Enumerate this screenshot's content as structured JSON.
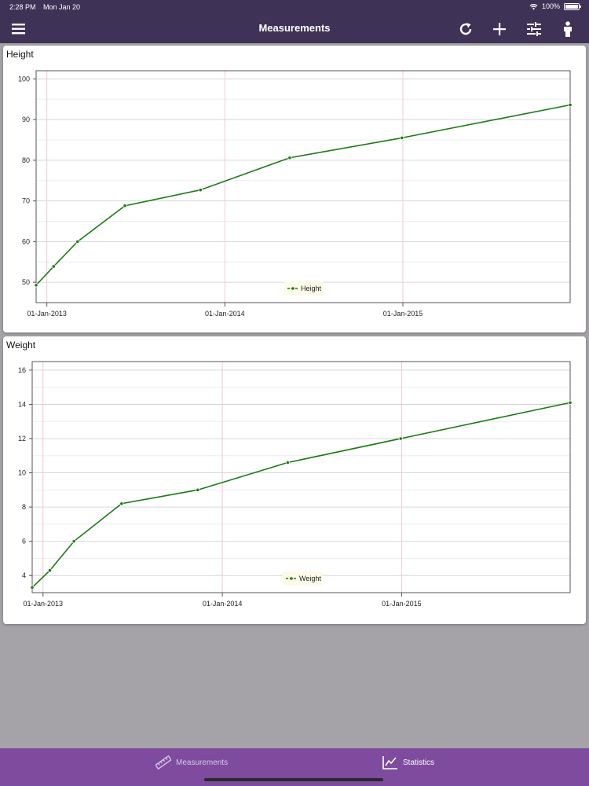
{
  "status_bar": {
    "time": "2:28 PM",
    "date": "Mon Jan 20",
    "battery": "100%"
  },
  "nav": {
    "title": "Measurements",
    "icons": [
      "menu-icon",
      "refresh-icon",
      "add-icon",
      "sliders-icon",
      "person-icon"
    ]
  },
  "charts": {
    "height_title": "Height",
    "weight_title": "Weight"
  },
  "chart_data": [
    {
      "type": "line",
      "title": "Height",
      "x_type": "date",
      "x_ticks": [
        "01-Jan-2013",
        "01-Jan-2014",
        "01-Jan-2015"
      ],
      "y_ticks": [
        50,
        60,
        70,
        80,
        90,
        100
      ],
      "ylim": [
        45,
        102
      ],
      "xlim": [
        "2012-12-10",
        "2015-12-10"
      ],
      "grid": true,
      "legend": "bottom-center",
      "series": [
        {
          "name": "Height",
          "color": "#1a7a12",
          "x": [
            "2012-12-10",
            "2013-01-15",
            "2013-03-05",
            "2013-06-10",
            "2013-11-12",
            "2014-05-14",
            "2014-12-30",
            "2015-12-10"
          ],
          "y": [
            49.3,
            53.9,
            60.0,
            68.8,
            72.7,
            80.6,
            85.5,
            93.6
          ]
        }
      ]
    },
    {
      "type": "line",
      "title": "Weight",
      "x_type": "date",
      "x_ticks": [
        "01-Jan-2013",
        "01-Jan-2014",
        "01-Jan-2015"
      ],
      "y_ticks": [
        4,
        6,
        8,
        10,
        12,
        14,
        16
      ],
      "ylim": [
        3.0,
        16.5
      ],
      "xlim": [
        "2012-12-10",
        "2015-12-10"
      ],
      "grid": true,
      "legend": "bottom-center",
      "series": [
        {
          "name": "Weight",
          "color": "#1a7a12",
          "x": [
            "2012-12-10",
            "2013-01-15",
            "2013-03-05",
            "2013-06-10",
            "2013-11-12",
            "2014-05-14",
            "2014-12-30",
            "2015-12-10"
          ],
          "y": [
            3.3,
            4.3,
            6.0,
            8.2,
            9.0,
            10.6,
            12.0,
            14.1
          ]
        }
      ]
    }
  ],
  "tabs": [
    {
      "label": "Measurements",
      "icon": "ruler-icon",
      "active": false,
      "color": "#d8c9e6"
    },
    {
      "label": "Statistics",
      "icon": "chart-icon",
      "active": true,
      "color": "#ffffff"
    }
  ],
  "colors": {
    "header": "#3e3356",
    "tab_bar": "#7e4b9e",
    "line": "#1a7a12",
    "background": "#a5a3a7"
  }
}
